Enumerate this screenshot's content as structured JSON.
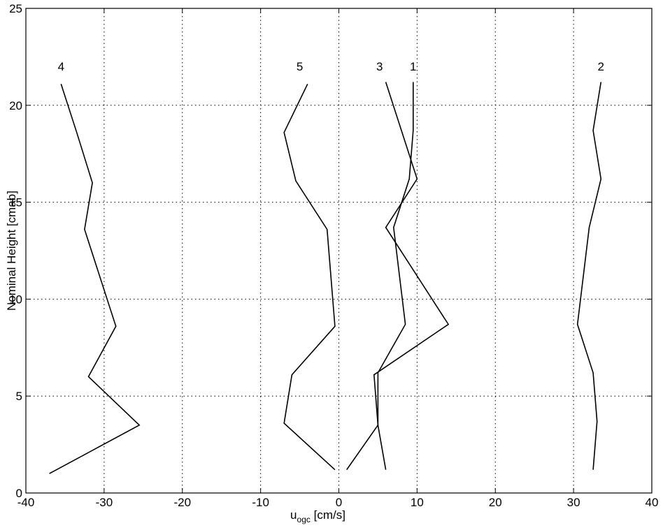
{
  "chart_data": {
    "type": "line",
    "title": "",
    "xlabel": {
      "main": "u",
      "sub": "ogc",
      "unit": " [cm/s]"
    },
    "ylabel": "Nominal Height [cmab]",
    "xlim": [
      -40,
      40
    ],
    "ylim": [
      0,
      25
    ],
    "xticks": [
      -40,
      -30,
      -20,
      -10,
      0,
      10,
      20,
      30,
      40
    ],
    "yticks": [
      0,
      5,
      10,
      15,
      20,
      25
    ],
    "grid": true,
    "series": [
      {
        "name": "1",
        "points": [
          [
            6,
            1.2
          ],
          [
            5,
            3.5
          ],
          [
            5,
            6.2
          ],
          [
            8.5,
            8.7
          ],
          [
            7,
            13.7
          ],
          [
            9,
            16.2
          ],
          [
            9.5,
            18.7
          ],
          [
            9.5,
            21.2
          ]
        ]
      },
      {
        "name": "2",
        "points": [
          [
            32.5,
            1.2
          ],
          [
            33,
            3.7
          ],
          [
            32.5,
            6.2
          ],
          [
            30.5,
            8.7
          ],
          [
            32,
            13.7
          ],
          [
            33.5,
            16.2
          ],
          [
            32.5,
            18.7
          ],
          [
            33.5,
            21.2
          ]
        ]
      },
      {
        "name": "3",
        "points": [
          [
            1,
            1.2
          ],
          [
            5,
            3.5
          ],
          [
            4.5,
            6.1
          ],
          [
            14,
            8.7
          ],
          [
            6,
            13.7
          ],
          [
            10,
            16.2
          ],
          [
            6,
            21.2
          ]
        ]
      },
      {
        "name": "4",
        "points": [
          [
            -37,
            1
          ],
          [
            -25.5,
            3.5
          ],
          [
            -32,
            6
          ],
          [
            -28.5,
            8.6
          ],
          [
            -32.5,
            13.6
          ],
          [
            -31.5,
            16
          ],
          [
            -33.5,
            18.6
          ],
          [
            -35.5,
            21.1
          ]
        ]
      },
      {
        "name": "5",
        "points": [
          [
            -0.5,
            1.2
          ],
          [
            -7,
            3.6
          ],
          [
            -6,
            6.1
          ],
          [
            -0.5,
            8.6
          ],
          [
            -1.5,
            13.6
          ],
          [
            -5.5,
            16.1
          ],
          [
            -7,
            18.6
          ],
          [
            -4,
            21.1
          ]
        ]
      }
    ],
    "labels": [
      {
        "text": "4",
        "x": -35.5,
        "y": 21.8
      },
      {
        "text": "5",
        "x": -5,
        "y": 21.8
      },
      {
        "text": "3",
        "x": 5.2,
        "y": 21.8
      },
      {
        "text": "1",
        "x": 9.5,
        "y": 21.8
      },
      {
        "text": "2",
        "x": 33.5,
        "y": 21.8
      }
    ]
  }
}
